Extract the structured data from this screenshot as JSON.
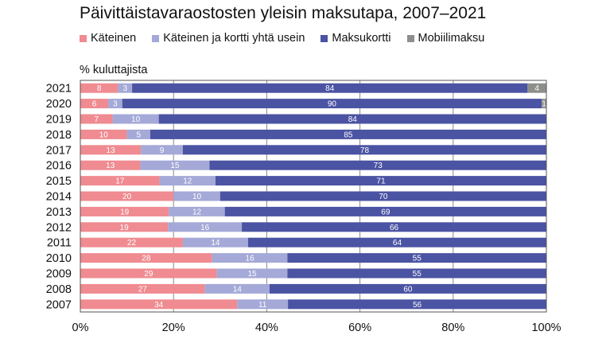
{
  "chart_data": {
    "type": "bar",
    "orientation": "horizontal",
    "stacked": true,
    "title": "Päivittäistavaraostosten yleisin maksutapa, 2007–2021",
    "ylabel": "% kuluttajista",
    "xlabel": "",
    "xlim": [
      0,
      100
    ],
    "x_ticks": [
      "0%",
      "20%",
      "40%",
      "60%",
      "80%",
      "100%"
    ],
    "grid": true,
    "legend_position": "top",
    "categories": [
      "2021",
      "2020",
      "2019",
      "2018",
      "2017",
      "2016",
      "2015",
      "2014",
      "2013",
      "2012",
      "2011",
      "2010",
      "2009",
      "2008",
      "2007"
    ],
    "series": [
      {
        "name": "Käteinen",
        "color": "#ef8b91",
        "values": [
          8,
          6,
          7,
          10,
          13,
          13,
          17,
          20,
          19,
          19,
          22,
          28,
          29,
          27,
          34
        ]
      },
      {
        "name": "Käteinen ja kortti yhtä usein",
        "color": "#a4a9d7",
        "values": [
          3,
          3,
          10,
          5,
          9,
          15,
          12,
          10,
          12,
          16,
          14,
          16,
          15,
          14,
          11
        ]
      },
      {
        "name": "Maksukortti",
        "color": "#4b53a3",
        "values": [
          84,
          90,
          84,
          85,
          78,
          73,
          71,
          70,
          69,
          66,
          64,
          55,
          55,
          60,
          56
        ]
      },
      {
        "name": "Mobiilimaksu",
        "color": "#8d8f8b",
        "values": [
          4,
          1,
          null,
          null,
          null,
          null,
          null,
          null,
          null,
          null,
          null,
          null,
          null,
          null,
          null
        ]
      }
    ]
  }
}
